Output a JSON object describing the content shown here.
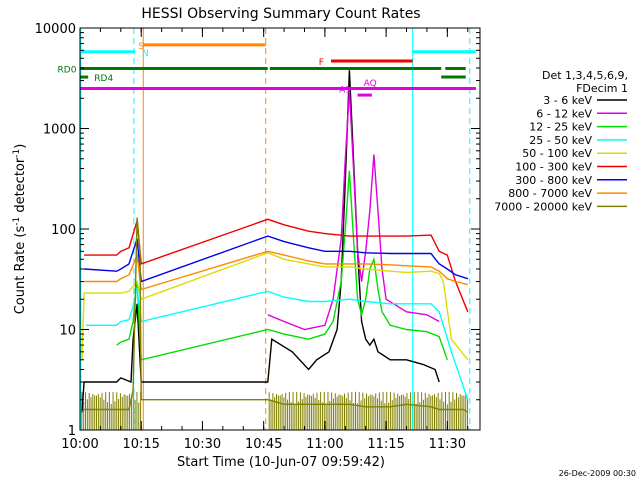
{
  "chart_data": {
    "type": "line",
    "title": "HESSI Observing Summary Count Rates",
    "xlabel": "Start Time (10-Jun-07 09:59:42)",
    "ylabel_main": "Count Rate (s",
    "ylabel_exp1": "-1",
    "ylabel_mid": " detector",
    "ylabel_exp2": "-1",
    "ylabel_end": ")",
    "yscale": "log",
    "ylim": [
      1,
      10000
    ],
    "xlim": [
      0,
      98
    ],
    "x_unit": "minutes after 10:00",
    "x_ticks": [
      {
        "v": 0,
        "label": "10:00"
      },
      {
        "v": 15,
        "label": "10:15"
      },
      {
        "v": 30,
        "label": "10:30"
      },
      {
        "v": 45,
        "label": "10:45"
      },
      {
        "v": 60,
        "label": "11:00"
      },
      {
        "v": 75,
        "label": "11:15"
      },
      {
        "v": 90,
        "label": "11:30"
      }
    ],
    "y_ticks": [
      {
        "v": 1,
        "label": "1"
      },
      {
        "v": 10,
        "label": "10"
      },
      {
        "v": 100,
        "label": "100"
      },
      {
        "v": 1000,
        "label": "1000"
      },
      {
        "v": 10000,
        "label": "10000"
      }
    ],
    "grid": false,
    "legend_position": "right",
    "legend_title": [
      "Det 1,3,4,5,6,9,",
      "FDecim 1"
    ],
    "footer_date": "26-Dec-2009 00:30",
    "series": [
      {
        "name": "3 - 6 keV",
        "color": "#000000",
        "points": [
          [
            0.5,
            1.5
          ],
          [
            1,
            3
          ],
          [
            9,
            3
          ],
          [
            10,
            3.3
          ],
          [
            12.5,
            3
          ],
          [
            13,
            8
          ],
          [
            14,
            18
          ],
          [
            15,
            3
          ],
          [
            46,
            3
          ],
          [
            47,
            8
          ],
          [
            52,
            6
          ],
          [
            56,
            4
          ],
          [
            58,
            5
          ],
          [
            61,
            6
          ],
          [
            63,
            10
          ],
          [
            64,
            30
          ],
          [
            65,
            300
          ],
          [
            66,
            3800
          ],
          [
            67,
            500
          ],
          [
            68,
            60
          ],
          [
            69,
            12
          ],
          [
            70,
            8
          ],
          [
            71,
            7
          ],
          [
            72,
            8
          ],
          [
            73,
            6
          ],
          [
            76,
            5
          ],
          [
            80,
            5
          ],
          [
            84,
            4.5
          ],
          [
            87,
            4
          ],
          [
            88,
            3
          ]
        ]
      },
      {
        "name": "6 - 12 keV",
        "color": "#e000e0",
        "points": [
          [
            46,
            14
          ],
          [
            50,
            12
          ],
          [
            55,
            10
          ],
          [
            60,
            11
          ],
          [
            62,
            20
          ],
          [
            64,
            80
          ],
          [
            65,
            500
          ],
          [
            66,
            2400
          ],
          [
            67,
            400
          ],
          [
            68,
            60
          ],
          [
            69,
            30
          ],
          [
            70,
            60
          ],
          [
            71,
            150
          ],
          [
            72,
            550
          ],
          [
            73,
            150
          ],
          [
            74,
            40
          ],
          [
            75,
            20
          ],
          [
            80,
            15
          ],
          [
            85,
            14
          ],
          [
            88,
            12
          ]
        ]
      },
      {
        "name": "12 - 25 keV",
        "color": "#00dd00",
        "points": [
          [
            9,
            7
          ],
          [
            10,
            7.5
          ],
          [
            12,
            8
          ],
          [
            13,
            12
          ],
          [
            14,
            30
          ],
          [
            15,
            5
          ],
          [
            46,
            10
          ],
          [
            50,
            9
          ],
          [
            56,
            8
          ],
          [
            60,
            9
          ],
          [
            62,
            12
          ],
          [
            64,
            30
          ],
          [
            65,
            100
          ],
          [
            66,
            380
          ],
          [
            67,
            80
          ],
          [
            68,
            20
          ],
          [
            69,
            14
          ],
          [
            70,
            20
          ],
          [
            71,
            40
          ],
          [
            72,
            50
          ],
          [
            73,
            25
          ],
          [
            74,
            15
          ],
          [
            76,
            11
          ],
          [
            80,
            10
          ],
          [
            85,
            9.5
          ],
          [
            88,
            8.5
          ],
          [
            90,
            5
          ]
        ]
      },
      {
        "name": "25 - 50 keV",
        "color": "#00ffff",
        "points": [
          [
            1.5,
            11
          ],
          [
            9,
            11
          ],
          [
            10,
            12
          ],
          [
            12,
            12.5
          ],
          [
            13,
            17
          ],
          [
            14,
            26
          ],
          [
            15,
            12
          ],
          [
            46,
            24
          ],
          [
            50,
            21
          ],
          [
            56,
            19
          ],
          [
            60,
            19
          ],
          [
            66,
            20
          ],
          [
            70,
            19
          ],
          [
            76,
            18
          ],
          [
            80,
            18
          ],
          [
            86,
            18
          ],
          [
            88,
            15
          ],
          [
            91,
            6
          ],
          [
            95,
            2
          ]
        ]
      },
      {
        "name": "50 - 100 keV",
        "color": "#dddd00",
        "points": [
          [
            0.5,
            5
          ],
          [
            1,
            23
          ],
          [
            9,
            23
          ],
          [
            10,
            23
          ],
          [
            12,
            24
          ],
          [
            14,
            30
          ],
          [
            15,
            20
          ],
          [
            46,
            58
          ],
          [
            50,
            50
          ],
          [
            56,
            45
          ],
          [
            60,
            42
          ],
          [
            66,
            42
          ],
          [
            70,
            40
          ],
          [
            76,
            38
          ],
          [
            80,
            37
          ],
          [
            86,
            38
          ],
          [
            88,
            36
          ],
          [
            89,
            30
          ],
          [
            91,
            8
          ],
          [
            95,
            5
          ]
        ]
      },
      {
        "name": "100 - 300 keV",
        "color": "#ee0000",
        "points": [
          [
            1,
            55
          ],
          [
            9,
            55
          ],
          [
            10,
            60
          ],
          [
            12,
            65
          ],
          [
            14,
            120
          ],
          [
            15,
            45
          ],
          [
            46,
            125
          ],
          [
            50,
            110
          ],
          [
            56,
            95
          ],
          [
            60,
            90
          ],
          [
            66,
            85
          ],
          [
            70,
            85
          ],
          [
            76,
            85
          ],
          [
            80,
            85
          ],
          [
            86,
            87
          ],
          [
            88,
            60
          ],
          [
            90,
            55
          ],
          [
            92,
            30
          ],
          [
            95,
            15
          ]
        ]
      },
      {
        "name": "300 - 800 keV",
        "color": "#0000ee",
        "points": [
          [
            1,
            40
          ],
          [
            9,
            38
          ],
          [
            10,
            40
          ],
          [
            12,
            45
          ],
          [
            14,
            80
          ],
          [
            15,
            30
          ],
          [
            46,
            85
          ],
          [
            50,
            75
          ],
          [
            56,
            65
          ],
          [
            60,
            60
          ],
          [
            66,
            60
          ],
          [
            70,
            58
          ],
          [
            76,
            57
          ],
          [
            80,
            57
          ],
          [
            86,
            57
          ],
          [
            88,
            45
          ],
          [
            90,
            40
          ],
          [
            92,
            35
          ],
          [
            95,
            32
          ]
        ]
      },
      {
        "name": "800 - 7000 keV",
        "color": "#ff8800",
        "points": [
          [
            1,
            30
          ],
          [
            9,
            30
          ],
          [
            10,
            32
          ],
          [
            12,
            35
          ],
          [
            14,
            55
          ],
          [
            15,
            25
          ],
          [
            46,
            60
          ],
          [
            50,
            55
          ],
          [
            56,
            48
          ],
          [
            60,
            45
          ],
          [
            66,
            45
          ],
          [
            70,
            45
          ],
          [
            76,
            44
          ],
          [
            80,
            43
          ],
          [
            86,
            42
          ],
          [
            88,
            38
          ],
          [
            90,
            32
          ],
          [
            92,
            30
          ],
          [
            95,
            28
          ]
        ]
      },
      {
        "name": "7000 - 20000 keV",
        "color": "#808000",
        "points": [
          [
            0.5,
            1.5
          ],
          [
            1,
            1.6
          ],
          [
            9,
            1.6
          ],
          [
            12,
            1.6
          ],
          [
            13,
            2.5
          ],
          [
            14,
            130
          ],
          [
            14.7,
            60
          ],
          [
            15,
            2
          ],
          [
            46,
            2
          ],
          [
            50,
            1.8
          ],
          [
            56,
            1.8
          ],
          [
            60,
            1.8
          ],
          [
            66,
            1.8
          ],
          [
            70,
            1.7
          ],
          [
            76,
            1.7
          ],
          [
            80,
            1.8
          ],
          [
            86,
            1.7
          ],
          [
            88,
            1.6
          ],
          [
            94,
            1.6
          ],
          [
            95,
            1.5
          ]
        ]
      }
    ],
    "observing_flags": [
      {
        "label": "S",
        "color": "#ff8800",
        "y": 6800,
        "segments": [
          [
            15.5,
            45.5
          ]
        ],
        "label_x": 14.3
      },
      {
        "label": "N",
        "color": "#00ffff",
        "y": 5800,
        "segments": [
          [
            0,
            13.5
          ],
          [
            81.5,
            97
          ]
        ],
        "label_x": 15.2
      },
      {
        "label": "F",
        "color": "#ee0000",
        "y": 4700,
        "segments": [
          [
            61.5,
            81.5
          ]
        ],
        "label_x": 58.5
      },
      {
        "label": "RD0",
        "color": "#007700",
        "y": 3950,
        "segments": [
          [
            0,
            46
          ],
          [
            46.5,
            88.5
          ],
          [
            89.5,
            94.5
          ]
        ],
        "label_x": -5.5
      },
      {
        "label": "RD4",
        "color": "#007700",
        "y": 3250,
        "segments": [
          [
            0,
            2
          ],
          [
            88.5,
            94.5
          ]
        ],
        "label_x": 3.5
      },
      {
        "label": "AQ",
        "color": "#e000e0",
        "y": 2900,
        "segments": [],
        "label_x": 69.5
      },
      {
        "label": "A1",
        "color": "#e000e0",
        "y": 2500,
        "segments": [
          [
            0,
            97
          ]
        ],
        "label_x": 63.5
      }
    ],
    "a1_bar": {
      "x": [
        68,
        71.5
      ],
      "y": 2150
    },
    "vlines": [
      {
        "x": 0.2,
        "color": "#00ffff",
        "dash": false
      },
      {
        "x": 13.2,
        "color": "#00ffff",
        "dash": true
      },
      {
        "x": 15.5,
        "color": "#ff8800",
        "dash": false
      },
      {
        "x": 45.5,
        "color": "#ff8800",
        "dash": true
      },
      {
        "x": 81.5,
        "color": "#00ffff",
        "dash": false
      },
      {
        "x": 95.5,
        "color": "#00ffff",
        "dash": true
      }
    ]
  }
}
